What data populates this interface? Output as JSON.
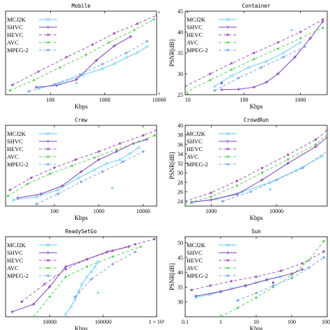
{
  "chart_data": [
    {
      "type": "line",
      "title": "Mobile",
      "xlabel": "Kbps",
      "ylabel": "",
      "xscale": "log",
      "xlim": [
        15,
        9000
      ],
      "ylim": [
        24,
        44
      ],
      "xticks": [
        {
          "v": 100,
          "label": "100"
        },
        {
          "v": 1000,
          "label": "1000"
        },
        {
          "v": 10000,
          "label": "10000"
        }
      ],
      "yticks": [],
      "legend": "top-left",
      "series": [
        {
          "name": "MCJ2K",
          "x": [
            60,
            150,
            400,
            900,
            1500,
            2500,
            4000,
            6000
          ],
          "y": [
            25.5,
            26.8,
            28.7,
            30.2,
            31.4,
            32.9,
            34.1,
            35.5
          ]
        },
        {
          "name": "SHVC",
          "x": [
            55,
            130,
            300,
            700,
            1500,
            3000
          ],
          "y": [
            25.8,
            26.2,
            27.6,
            32.2,
            35.7,
            37.9
          ]
        },
        {
          "name": "HEVC",
          "x": [
            20,
            60,
            200,
            600,
            1500,
            4000,
            9000
          ],
          "y": [
            26.3,
            29.5,
            33.0,
            36.0,
            38.7,
            41.0,
            43.0
          ]
        },
        {
          "name": "AVC",
          "x": [
            18,
            50,
            150,
            450,
            1200,
            3500,
            8000
          ],
          "y": [
            25.0,
            27.5,
            30.5,
            33.5,
            36.5,
            39.5,
            42.0
          ]
        },
        {
          "name": "MPEG-2",
          "x": [
            40,
            120,
            350,
            900,
            2500,
            6000
          ],
          "y": [
            24.8,
            26.5,
            28.8,
            31.3,
            34.0,
            36.8
          ]
        }
      ],
      "markers": [
        {
          "x": 300,
          "y": 26.8,
          "series": "MCJ2K"
        }
      ]
    },
    {
      "type": "line",
      "title": "Container",
      "xlabel": "Kbps",
      "ylabel": "PSNR[dB]",
      "xscale": "log",
      "xlim": [
        9,
        3000
      ],
      "ylim": [
        25,
        45
      ],
      "xticks": [
        {
          "v": 10,
          "label": "10"
        },
        {
          "v": 100,
          "label": "100"
        },
        {
          "v": 1000,
          "label": "1000"
        }
      ],
      "yticks": [
        {
          "v": 25,
          "label": "25"
        },
        {
          "v": 30,
          "label": "30"
        },
        {
          "v": 35,
          "label": "35"
        },
        {
          "v": 40,
          "label": "40"
        },
        {
          "v": 45,
          "label": "45"
        }
      ],
      "legend": "top-left",
      "series": [
        {
          "name": "MCJ2K",
          "x": [
            30,
            60,
            120,
            250,
            500,
            1000
          ],
          "y": [
            27.0,
            29.5,
            31.5,
            33.0,
            35.0,
            37.5
          ]
        },
        {
          "name": "SHVC",
          "x": [
            40,
            80,
            150,
            250,
            400,
            800,
            1500,
            2500
          ],
          "y": [
            26.2,
            26.3,
            26.8,
            28.0,
            30.0,
            34.0,
            38.5,
            42.5
          ]
        },
        {
          "name": "HEVC",
          "x": [
            9,
            25,
            60,
            150,
            400,
            1000,
            2500
          ],
          "y": [
            27.0,
            30.0,
            32.5,
            35.0,
            37.5,
            40.0,
            43.0
          ]
        },
        {
          "name": "AVC",
          "x": [
            9,
            25,
            60,
            150,
            400,
            1000,
            2500
          ],
          "y": [
            25.5,
            28.5,
            31.0,
            33.5,
            36.0,
            38.5,
            41.0
          ]
        },
        {
          "name": "MPEG-2",
          "x": [
            30,
            80,
            200,
            500,
            1200
          ],
          "y": [
            26.0,
            29.0,
            31.5,
            34.0,
            36.5
          ]
        }
      ],
      "markers": [
        {
          "x": 40,
          "y": 27.8,
          "series": "SHVC"
        },
        {
          "x": 700,
          "y": 40.5,
          "series": "MCJ2K"
        }
      ]
    },
    {
      "type": "line",
      "title": "Crew",
      "xlabel": "Kbps",
      "ylabel": "",
      "xscale": "log",
      "xlim": [
        8,
        20000
      ],
      "ylim": [
        24,
        44
      ],
      "xticks": [
        {
          "v": 100,
          "label": "100"
        },
        {
          "v": 1000,
          "label": "1000"
        },
        {
          "v": 10000,
          "label": "10000"
        }
      ],
      "yticks": [],
      "legend": "top-left",
      "series": [
        {
          "name": "MCJ2K",
          "x": [
            12,
            40,
            120,
            350,
            800,
            1500,
            3000,
            5000,
            8000
          ],
          "y": [
            25.5,
            26.3,
            28.0,
            31.0,
            33.0,
            34.5,
            35.5,
            37.0,
            38.5
          ]
        },
        {
          "name": "SHVC",
          "x": [
            15,
            50,
            150,
            400,
            1000,
            2500,
            6000,
            12000
          ],
          "y": [
            26.0,
            27.0,
            29.0,
            32.5,
            35.5,
            37.5,
            39.5,
            40.5
          ]
        },
        {
          "name": "HEVC",
          "x": [
            10,
            30,
            100,
            300,
            1000,
            3000,
            10000,
            20000
          ],
          "y": [
            28.0,
            31.0,
            33.5,
            35.5,
            37.5,
            39.5,
            41.5,
            42.8
          ]
        },
        {
          "name": "AVC",
          "x": [
            9,
            25,
            80,
            250,
            800,
            2500,
            8000,
            18000
          ],
          "y": [
            26.5,
            29.5,
            32.0,
            34.0,
            36.0,
            38.0,
            40.0,
            41.5
          ]
        },
        {
          "name": "MPEG-2",
          "x": [
            40,
            120,
            400,
            1200,
            3500,
            10000
          ],
          "y": [
            24.5,
            27.0,
            30.0,
            32.5,
            35.0,
            37.5
          ]
        }
      ],
      "markers": [
        {
          "x": 2000,
          "y": 28.5,
          "series": "MCJ2K"
        }
      ]
    },
    {
      "type": "line",
      "title": "CrowdRun",
      "xlabel": "Kbps",
      "ylabel": "PSNR[dB]",
      "xscale": "log",
      "xlim": [
        400,
        60000
      ],
      "ylim": [
        23,
        40
      ],
      "xticks": [
        {
          "v": 1000,
          "label": "1000"
        },
        {
          "v": 10000,
          "label": "10000"
        }
      ],
      "yticks": [
        {
          "v": 24,
          "label": "24"
        },
        {
          "v": 26,
          "label": "26"
        },
        {
          "v": 28,
          "label": "28"
        },
        {
          "v": 30,
          "label": "30"
        },
        {
          "v": 32,
          "label": "32"
        },
        {
          "v": 34,
          "label": "34"
        },
        {
          "v": 36,
          "label": "36"
        },
        {
          "v": 38,
          "label": "38"
        },
        {
          "v": 40,
          "label": "40"
        }
      ],
      "legend": "top-left",
      "series": [
        {
          "name": "MCJ2K",
          "x": [
            500,
            1200,
            3000,
            8000,
            20000,
            50000
          ],
          "y": [
            23.8,
            24.5,
            26.0,
            28.0,
            30.5,
            33.5
          ]
        },
        {
          "name": "SHVC",
          "x": [
            500,
            1000,
            2500,
            6000,
            15000,
            40000,
            60000
          ],
          "y": [
            23.8,
            24.3,
            25.5,
            28.5,
            32.0,
            35.5,
            37.5
          ]
        },
        {
          "name": "HEVC",
          "x": [
            400,
            1000,
            2500,
            6000,
            15000,
            40000,
            60000
          ],
          "y": [
            24.0,
            25.8,
            28.3,
            31.0,
            33.8,
            37.0,
            39.0
          ]
        },
        {
          "name": "AVC",
          "x": [
            400,
            1000,
            2500,
            6000,
            15000,
            40000,
            60000
          ],
          "y": [
            23.5,
            25.0,
            27.3,
            30.0,
            32.8,
            36.0,
            38.0
          ]
        },
        {
          "name": "MPEG-2",
          "x": [
            1500,
            4000,
            10000,
            25000,
            60000
          ],
          "y": [
            24.0,
            26.0,
            28.5,
            31.0,
            34.5
          ]
        }
      ],
      "markers": [
        {
          "x": 8000,
          "y": 26.5,
          "series": "MCJ2K"
        }
      ]
    },
    {
      "type": "line",
      "title": "ReadySetGo",
      "xlabel": "Kbps",
      "ylabel": "",
      "xscale": "log",
      "xlim": [
        1500,
        1000000
      ],
      "ylim": [
        30,
        46
      ],
      "xticks": [
        {
          "v": 10000,
          "label": "10000"
        },
        {
          "v": 100000,
          "label": "100000"
        },
        {
          "v": 1000000,
          "label": "1 × 10⁶"
        }
      ],
      "yticks": [],
      "legend": "top-left",
      "series": [
        {
          "name": "MCJ2K",
          "x": [
            20000,
            25000,
            30000,
            35000,
            40000,
            50000,
            60000,
            70000,
            80000
          ],
          "y": [
            30.5,
            32.0,
            33.5,
            35.0,
            36.5,
            38.0,
            39.0,
            40.0,
            41.0
          ]
        },
        {
          "name": "SHVC",
          "x": [
            2000,
            5000,
            10000,
            20000,
            50000,
            120000,
            300000
          ],
          "y": [
            31.0,
            32.5,
            36.0,
            40.0,
            41.5,
            43.0,
            44.0
          ]
        },
        {
          "name": "HEVC",
          "x": [
            3000,
            8000,
            20000,
            50000,
            150000,
            400000,
            900000
          ],
          "y": [
            33.0,
            36.5,
            39.5,
            41.5,
            43.2,
            44.5,
            45.5
          ]
        },
        {
          "name": "AVC",
          "x": [
            5000,
            10000,
            20000,
            50000,
            150000,
            500000
          ],
          "y": [
            30.0,
            34.0,
            38.0,
            40.0,
            42.0,
            44.0
          ]
        },
        {
          "name": "MPEG-2",
          "x": [
            30000,
            60000,
            150000,
            400000
          ],
          "y": [
            34.0,
            37.5,
            40.5,
            43.0
          ]
        }
      ],
      "markers": [
        {
          "x": 80000,
          "y": 34.8,
          "series": "MCJ2K"
        }
      ]
    },
    {
      "type": "line",
      "title": "Sun",
      "xlabel": "Kbps",
      "ylabel": "PSNR[dB]",
      "xscale": "log",
      "xlim": [
        0.1,
        1000
      ],
      "ylim": [
        25,
        52
      ],
      "xticks": [
        {
          "v": 0.1,
          "label": "0.1"
        },
        {
          "v": 1,
          "label": "1"
        },
        {
          "v": 10,
          "label": "10"
        },
        {
          "v": 100,
          "label": "100"
        },
        {
          "v": 1000,
          "label": "1000"
        }
      ],
      "yticks": [
        {
          "v": 30,
          "label": "30"
        },
        {
          "v": 35,
          "label": "35"
        },
        {
          "v": 40,
          "label": "40"
        },
        {
          "v": 45,
          "label": "45"
        },
        {
          "v": 50,
          "label": "50"
        }
      ],
      "legend": "top-left",
      "series": [
        {
          "name": "MCJ2K",
          "x": [
            0.2,
            0.5,
            1,
            2,
            5,
            10,
            20,
            50
          ],
          "y": [
            31.5,
            32.5,
            33.5,
            34.5,
            35.5,
            36.5,
            37.5,
            38.5
          ]
        },
        {
          "name": "SHVC",
          "x": [
            0.2,
            1,
            5,
            20,
            100,
            200
          ],
          "y": [
            32.0,
            33.5,
            35.5,
            37.5,
            39.5,
            41.0
          ]
        },
        {
          "name": "HEVC",
          "x": [
            0.15,
            0.5,
            2,
            10,
            50,
            200,
            800
          ],
          "y": [
            34.0,
            35.5,
            37.0,
            38.5,
            40.5,
            43.0,
            47.0
          ]
        },
        {
          "name": "AVC",
          "x": [
            1,
            3,
            10,
            30,
            100,
            300,
            800
          ],
          "y": [
            25.0,
            28.0,
            31.5,
            35.0,
            39.0,
            44.0,
            50.5
          ]
        },
        {
          "name": "MPEG-2",
          "x": [
            3,
            10,
            30,
            100,
            300,
            800
          ],
          "y": [
            30.5,
            33.0,
            35.5,
            38.0,
            41.5,
            45.0
          ]
        }
      ],
      "markers": [
        {
          "x": 30,
          "y": 36.5,
          "series": "SHVC"
        }
      ]
    }
  ],
  "styles": {
    "MCJ2K": {
      "color": "#7fd4f4",
      "dash": "",
      "marker": "cross",
      "width": 1.2
    },
    "SHVC": {
      "color": "#7a3fb8",
      "dash": "",
      "marker": "plus",
      "width": 1.0
    },
    "HEVC": {
      "color": "#9b56b0",
      "dash": "4,3",
      "marker": "square",
      "width": 1.0
    },
    "AVC": {
      "color": "#5cd05c",
      "dash": "4,3",
      "marker": "circle",
      "width": 1.0
    },
    "MPEG-2": {
      "color": "#7ea8e8",
      "dash": "4,3",
      "marker": "diamond",
      "width": 1.0
    }
  }
}
